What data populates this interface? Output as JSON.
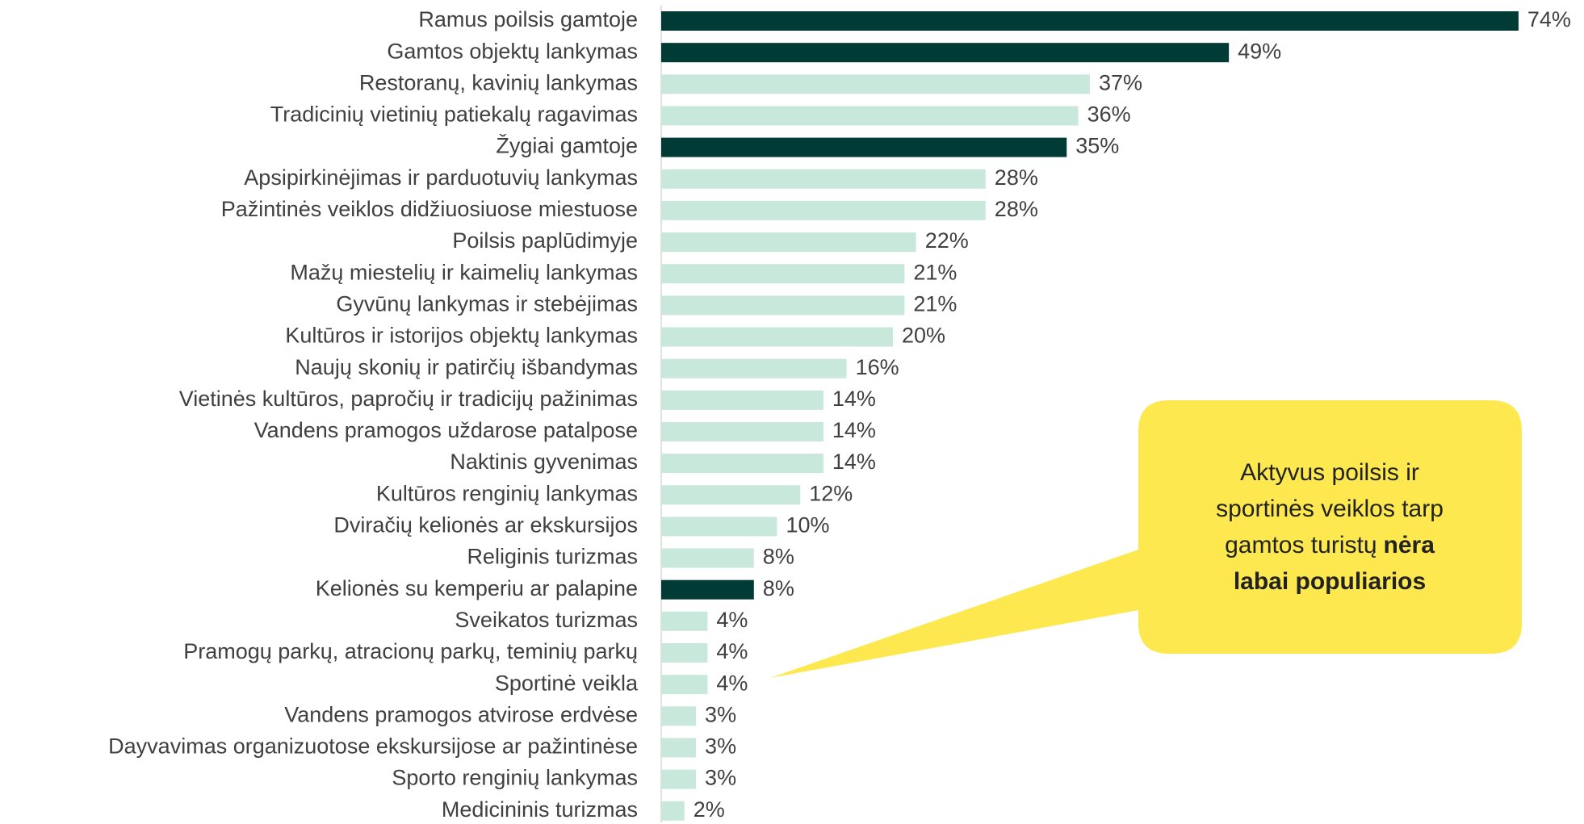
{
  "chart_data": {
    "type": "barh",
    "categories": [
      "Ramus poilsis gamtoje",
      "Gamtos objektų lankymas",
      "Restoranų, kavinių lankymas",
      "Tradicinių vietinių patiekalų ragavimas",
      "Žygiai gamtoje",
      "Apsipirkinėjimas ir parduotuvių lankymas",
      "Pažintinės veiklos didžiuosiuose miestuose",
      "Poilsis paplūdimyje",
      "Mažų miestelių ir kaimelių lankymas",
      "Gyvūnų lankymas ir stebėjimas",
      "Kultūros ir istorijos objektų lankymas",
      "Naujų skonių ir patirčių išbandymas",
      "Vietinės kultūros, papročių ir tradicijų pažinimas",
      "Vandens pramogos uždarose patalpose",
      "Naktinis gyvenimas",
      "Kultūros renginių lankymas",
      "Dviračių kelionės ar ekskursijos",
      "Religinis turizmas",
      "Kelionės su kemperiu ar palapine",
      "Sveikatos turizmas",
      "Pramogų parkų, atracionų parkų, teminių parkų",
      "Sportinė veikla",
      "Vandens pramogos atvirose erdvėse",
      "Dayvavimas organizuotose ekskursijose ar pažintinėse",
      "Sporto renginių lankymas",
      "Medicininis turizmas"
    ],
    "values": [
      74,
      49,
      37,
      36,
      35,
      28,
      28,
      22,
      21,
      21,
      20,
      16,
      14,
      14,
      14,
      12,
      10,
      8,
      8,
      4,
      4,
      4,
      3,
      3,
      3,
      2
    ],
    "value_labels": [
      "74%",
      "49%",
      "37%",
      "36%",
      "35%",
      "28%",
      "28%",
      "22%",
      "21%",
      "21%",
      "20%",
      "16%",
      "14%",
      "14%",
      "14%",
      "12%",
      "10%",
      "8%",
      "8%",
      "4%",
      "4%",
      "4%",
      "3%",
      "3%",
      "3%",
      "2%"
    ],
    "colors": [
      "#003b36",
      "#003b36",
      "#c9e8dc",
      "#c9e8dc",
      "#003b36",
      "#c9e8dc",
      "#c9e8dc",
      "#c9e8dc",
      "#c9e8dc",
      "#c9e8dc",
      "#c9e8dc",
      "#c9e8dc",
      "#c9e8dc",
      "#c9e8dc",
      "#c9e8dc",
      "#c9e8dc",
      "#c9e8dc",
      "#c9e8dc",
      "#003b36",
      "#c9e8dc",
      "#c9e8dc",
      "#c9e8dc",
      "#c9e8dc",
      "#c9e8dc",
      "#c9e8dc",
      "#c9e8dc"
    ],
    "annotation": {
      "text": [
        "Aktyvus poilsis ir",
        "sportinės veiklos tarp",
        "gamtos turistų"
      ],
      "bold": [
        "nėra",
        "labai populiarios"
      ],
      "target": 21,
      "color": "#fde84f"
    }
  }
}
